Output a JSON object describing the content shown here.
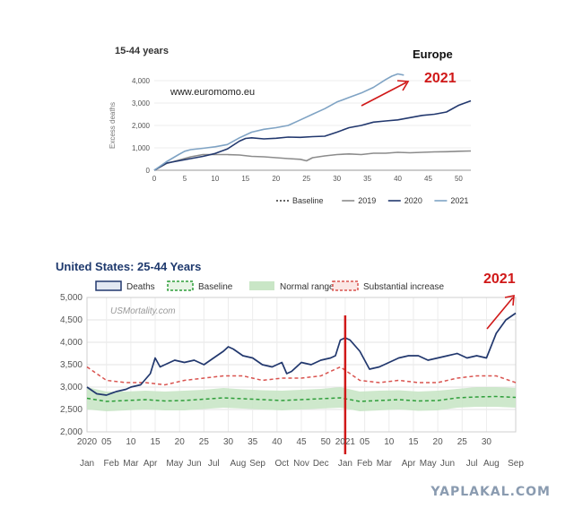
{
  "chart_data": [
    {
      "type": "line",
      "title": "15-44 years",
      "region_label": "Europe",
      "source_label": "www.euromomo.eu",
      "annotation": "2021",
      "ylabel": "Excess deaths",
      "xlim": [
        0,
        52
      ],
      "ylim": [
        0,
        4000
      ],
      "x_ticks": [
        0,
        5,
        10,
        15,
        20,
        25,
        30,
        35,
        40,
        45,
        50
      ],
      "y_ticks": [
        0,
        1000,
        2000,
        3000,
        4000
      ],
      "y_tick_labels": [
        "0",
        "1,000",
        "2,000",
        "3,000",
        "4,000"
      ],
      "legend": [
        {
          "label": "Baseline",
          "style": "dotted",
          "color": "#333333"
        },
        {
          "label": "2019",
          "style": "solid",
          "color": "#8c8c8c"
        },
        {
          "label": "2020",
          "style": "solid",
          "color": "#22386e"
        },
        {
          "label": "2021",
          "style": "solid",
          "color": "#7fa3c4"
        }
      ],
      "series": [
        {
          "name": "2019",
          "color": "#8c8c8c",
          "x": [
            0,
            2,
            4,
            6,
            8,
            10,
            12,
            14,
            16,
            18,
            20,
            22,
            24,
            25,
            26,
            28,
            30,
            32,
            34,
            36,
            38,
            40,
            42,
            44,
            46,
            48,
            50,
            52
          ],
          "y": [
            0,
            300,
            450,
            600,
            700,
            700,
            700,
            680,
            620,
            600,
            560,
            520,
            490,
            420,
            560,
            640,
            700,
            730,
            700,
            760,
            760,
            800,
            780,
            800,
            820,
            830,
            850,
            860
          ]
        },
        {
          "name": "2020",
          "color": "#22386e",
          "x": [
            0,
            2,
            4,
            6,
            8,
            10,
            12,
            14,
            15,
            16,
            18,
            20,
            22,
            24,
            26,
            28,
            30,
            32,
            34,
            36,
            38,
            40,
            42,
            44,
            46,
            48,
            50,
            52
          ],
          "y": [
            0,
            320,
            420,
            520,
            620,
            750,
            950,
            1300,
            1420,
            1450,
            1400,
            1430,
            1480,
            1470,
            1500,
            1520,
            1700,
            1900,
            2000,
            2150,
            2200,
            2250,
            2350,
            2450,
            2500,
            2600,
            2900,
            3100
          ]
        },
        {
          "name": "2021",
          "color": "#7fa3c4",
          "x": [
            0,
            2,
            4,
            5,
            6,
            8,
            10,
            12,
            14,
            16,
            18,
            20,
            22,
            24,
            26,
            28,
            30,
            32,
            34,
            36,
            38,
            39,
            40,
            41
          ],
          "y": [
            0,
            380,
            700,
            850,
            920,
            980,
            1050,
            1150,
            1450,
            1700,
            1830,
            1900,
            2000,
            2250,
            2500,
            2750,
            3050,
            3250,
            3450,
            3700,
            4050,
            4200,
            4300,
            4250
          ]
        }
      ]
    },
    {
      "type": "line",
      "title": "United States: 25-44 Years",
      "source_label": "USMortality.com",
      "annotation": "2021",
      "ylim": [
        2000,
        5000
      ],
      "y_ticks": [
        2000,
        2500,
        3000,
        3500,
        4000,
        4500,
        5000
      ],
      "y_tick_labels": [
        "2,000",
        "2,500",
        "3,000",
        "3,500",
        "4,000",
        "4,500",
        "5,000"
      ],
      "xlim": [
        0,
        88
      ],
      "week_tick_pos": [
        0,
        4,
        9,
        14,
        19,
        24,
        29,
        34,
        39,
        44,
        49,
        53,
        57,
        62,
        67,
        72,
        77,
        82
      ],
      "week_tick_labels": [
        "2020",
        "05",
        "10",
        "15",
        "20",
        "25",
        "30",
        "35",
        "40",
        "45",
        "50",
        "2021",
        "05",
        "10",
        "15",
        "20",
        "25",
        "30"
      ],
      "month_tick_pos": [
        0,
        5,
        9,
        13,
        18,
        22,
        26,
        31,
        35,
        40,
        44,
        48,
        53,
        57,
        61,
        66,
        70,
        74,
        79,
        83,
        88
      ],
      "month_tick_labels": [
        "Jan",
        "Feb",
        "Mar",
        "Apr",
        "May",
        "Jun",
        "Jul",
        "Aug",
        "Sep",
        "Oct",
        "Nov",
        "Dec",
        "Jan",
        "Feb",
        "Mar",
        "Apr",
        "May",
        "Jun",
        "Jul",
        "Aug",
        "Sep"
      ],
      "marker_x": 53,
      "legend": [
        {
          "label": "Deaths",
          "color": "#22386e"
        },
        {
          "label": "Baseline",
          "color": "#2e9e3a"
        },
        {
          "label": "Normal range",
          "color": "#c9e6c6"
        },
        {
          "label": "Substantial increase",
          "color": "#d9534f"
        }
      ],
      "series": [
        {
          "name": "Deaths",
          "color": "#22386e",
          "x": [
            0,
            2,
            4,
            6,
            8,
            9,
            11,
            13,
            14,
            15,
            16,
            18,
            20,
            22,
            24,
            26,
            28,
            29,
            30,
            32,
            34,
            36,
            38,
            40,
            41,
            42,
            44,
            46,
            48,
            50,
            51,
            52,
            53,
            54,
            56,
            58,
            60,
            62,
            64,
            66,
            68,
            70,
            72,
            74,
            76,
            78,
            80,
            82,
            84,
            86,
            88
          ],
          "y": [
            3000,
            2850,
            2820,
            2900,
            2950,
            3000,
            3050,
            3300,
            3650,
            3450,
            3500,
            3600,
            3550,
            3600,
            3500,
            3650,
            3800,
            3900,
            3850,
            3700,
            3650,
            3500,
            3450,
            3550,
            3300,
            3350,
            3550,
            3500,
            3600,
            3650,
            3700,
            4050,
            4100,
            4050,
            3800,
            3400,
            3450,
            3550,
            3650,
            3700,
            3700,
            3600,
            3650,
            3700,
            3750,
            3650,
            3700,
            3650,
            4200,
            4500,
            4650
          ]
        },
        {
          "name": "Baseline",
          "color": "#2e9e3a",
          "x": [
            0,
            4,
            8,
            12,
            16,
            20,
            24,
            28,
            32,
            36,
            40,
            44,
            48,
            52,
            56,
            60,
            64,
            68,
            72,
            76,
            80,
            84,
            88
          ],
          "y": [
            2750,
            2680,
            2700,
            2720,
            2690,
            2700,
            2730,
            2760,
            2740,
            2720,
            2700,
            2720,
            2740,
            2760,
            2680,
            2700,
            2720,
            2690,
            2700,
            2760,
            2780,
            2790,
            2770
          ]
        },
        {
          "name": "Substantial increase",
          "color": "#d9534f",
          "x": [
            0,
            4,
            8,
            12,
            16,
            20,
            24,
            28,
            32,
            36,
            40,
            44,
            48,
            52,
            56,
            60,
            64,
            68,
            72,
            76,
            80,
            84,
            88
          ],
          "y": [
            3450,
            3150,
            3100,
            3100,
            3050,
            3150,
            3200,
            3250,
            3250,
            3150,
            3200,
            3200,
            3250,
            3450,
            3150,
            3100,
            3150,
            3100,
            3100,
            3200,
            3250,
            3250,
            3100
          ]
        },
        {
          "name": "Normal range",
          "color": "#c9e6c6",
          "x": [
            0,
            4,
            8,
            12,
            16,
            20,
            24,
            28,
            32,
            36,
            40,
            44,
            48,
            52,
            56,
            60,
            64,
            68,
            72,
            76,
            80,
            84,
            88
          ],
          "upper": [
            3000,
            2900,
            2900,
            2920,
            2900,
            2920,
            2940,
            2980,
            2950,
            2930,
            2920,
            2940,
            2960,
            3000,
            2900,
            2920,
            2930,
            2900,
            2920,
            2960,
            3000,
            3000,
            2980
          ],
          "lower": [
            2500,
            2460,
            2480,
            2500,
            2480,
            2480,
            2510,
            2540,
            2520,
            2500,
            2480,
            2500,
            2520,
            2540,
            2460,
            2480,
            2500,
            2470,
            2480,
            2540,
            2560,
            2560,
            2540
          ]
        }
      ]
    }
  ],
  "watermark": "YAPLAKAL.COM"
}
